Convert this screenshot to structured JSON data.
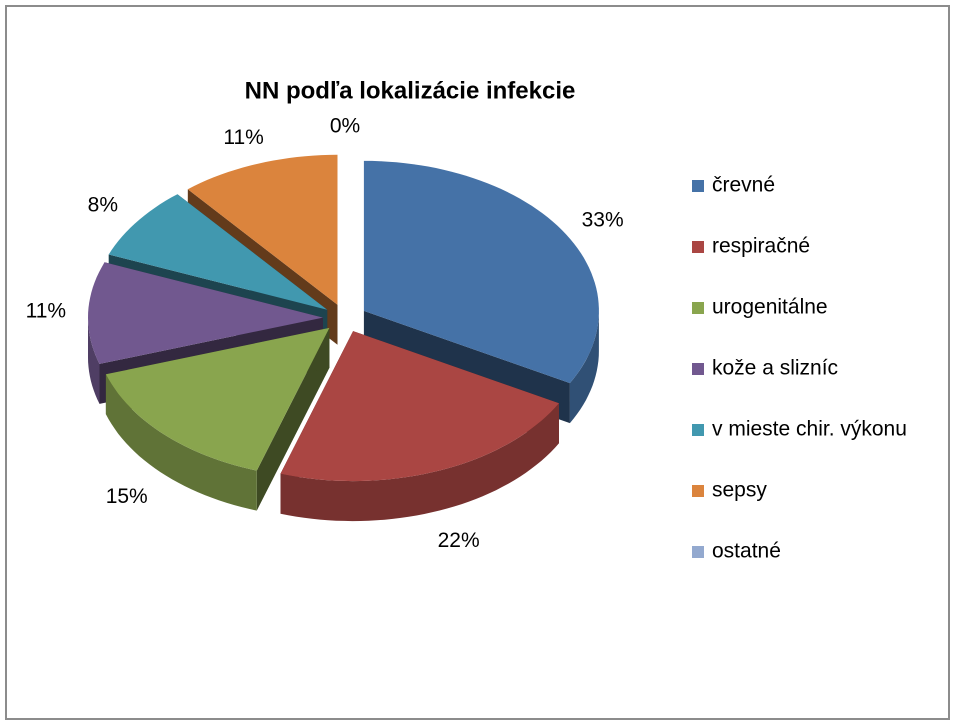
{
  "chart_data": {
    "type": "pie",
    "title": "NN podľa lokalizácie infekcie",
    "categories": [
      "črevné",
      "respiračné",
      "urogenitálne",
      "kože a slizníc",
      "v mieste chir. výkonu",
      "sepsy",
      "ostatné"
    ],
    "values": [
      33,
      22,
      15,
      11,
      8,
      11,
      0
    ],
    "value_labels": [
      "33%",
      "22%",
      "15%",
      "11%",
      "8%",
      "11%",
      "0%"
    ],
    "colors": [
      "#4572a7",
      "#aa4643",
      "#89a54e",
      "#71588f",
      "#4198af",
      "#db843d",
      "#93a9cf"
    ],
    "legend": "right"
  }
}
